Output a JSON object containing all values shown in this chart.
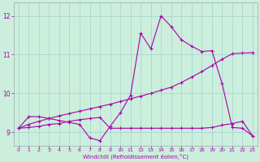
{
  "xlabel": "Windchill (Refroidissement éolien,°C)",
  "bg_color": "#cceedd",
  "line_color": "#aa00aa",
  "xlim": [
    -0.5,
    23.5
  ],
  "ylim": [
    8.65,
    12.35
  ],
  "yticks": [
    9,
    10,
    11,
    12
  ],
  "xticks": [
    0,
    1,
    2,
    3,
    4,
    5,
    6,
    7,
    8,
    9,
    10,
    11,
    12,
    13,
    14,
    15,
    16,
    17,
    18,
    19,
    20,
    21,
    22,
    23
  ],
  "series1_x": [
    0,
    1,
    2,
    3,
    4,
    5,
    6,
    7,
    8,
    9,
    10,
    11,
    12,
    13,
    14,
    15,
    16,
    17,
    18,
    19,
    20,
    21,
    22,
    23
  ],
  "series1_y": [
    9.1,
    9.4,
    9.4,
    9.35,
    9.3,
    9.25,
    9.2,
    8.85,
    8.78,
    9.15,
    9.5,
    9.95,
    11.55,
    11.15,
    12.0,
    11.72,
    11.38,
    11.22,
    11.08,
    11.1,
    10.25,
    9.12,
    9.1,
    8.9
  ],
  "series2_x": [
    0,
    1,
    2,
    3,
    4,
    5,
    6,
    7,
    8,
    9,
    10,
    11,
    12,
    13,
    14,
    15,
    16,
    17,
    18,
    19,
    20,
    21,
    22,
    23
  ],
  "series2_y": [
    9.1,
    9.2,
    9.28,
    9.35,
    9.42,
    9.48,
    9.54,
    9.6,
    9.66,
    9.72,
    9.79,
    9.86,
    9.93,
    10.0,
    10.08,
    10.16,
    10.28,
    10.42,
    10.56,
    10.72,
    10.88,
    11.02,
    11.04,
    11.05
  ],
  "series3_x": [
    0,
    1,
    2,
    3,
    4,
    5,
    6,
    7,
    8,
    9,
    10,
    11,
    12,
    13,
    14,
    15,
    16,
    17,
    18,
    19,
    20,
    21,
    22,
    23
  ],
  "series3_y": [
    9.1,
    9.12,
    9.15,
    9.2,
    9.22,
    9.28,
    9.32,
    9.35,
    9.38,
    9.1,
    9.1,
    9.1,
    9.1,
    9.1,
    9.1,
    9.1,
    9.1,
    9.1,
    9.1,
    9.12,
    9.18,
    9.22,
    9.28,
    8.9
  ]
}
